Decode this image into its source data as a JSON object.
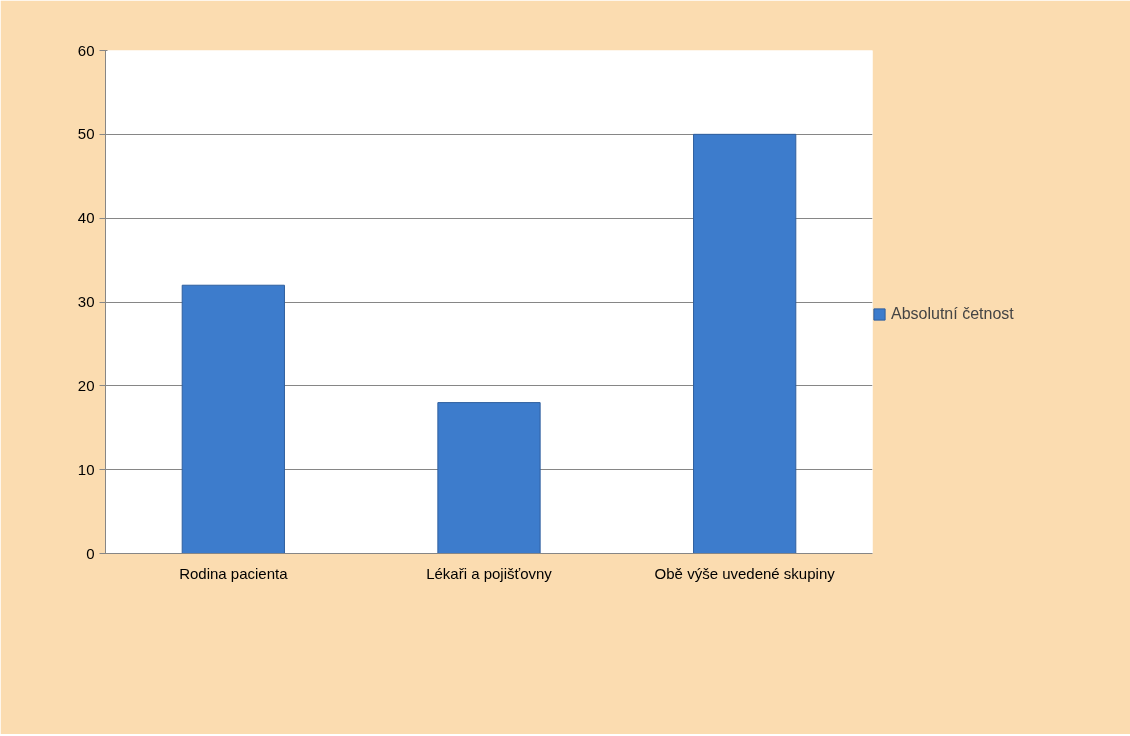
{
  "chart_data": {
    "type": "bar",
    "categories": [
      "Rodina pacienta",
      "Lékaři a pojišťovny",
      "Obě výše uvedené skupiny"
    ],
    "series": [
      {
        "name": "Absolutní četnost",
        "color": "#3d7ccc",
        "values": [
          32,
          18,
          50
        ]
      }
    ],
    "ylim": [
      0,
      60
    ],
    "yticks": [
      0,
      10,
      20,
      30,
      40,
      50,
      60
    ],
    "grid": "y",
    "legend": "right"
  }
}
